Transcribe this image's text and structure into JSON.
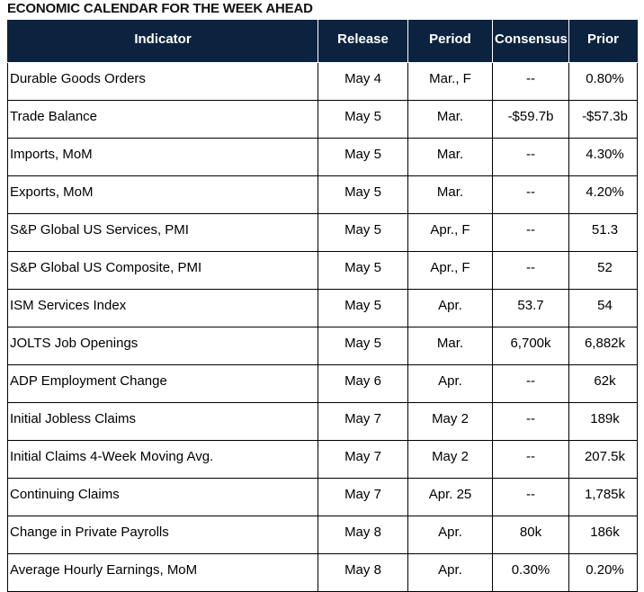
{
  "title": "ECONOMIC CALENDAR FOR THE WEEK AHEAD",
  "columns": {
    "indicator": "Indicator",
    "release": "Release",
    "period": "Period",
    "consensus": "Consensus",
    "prior": "Prior"
  },
  "colors": {
    "header_bg": "#0c2340",
    "header_text": "#ffffff",
    "grid": "#000000"
  },
  "rows": [
    {
      "indicator": "Durable Goods Orders",
      "release": "May 4",
      "period": "Mar., F",
      "consensus": "--",
      "prior": "0.80%"
    },
    {
      "indicator": "Trade Balance",
      "release": "May 5",
      "period": "Mar.",
      "consensus": "-$59.7b",
      "prior": "-$57.3b"
    },
    {
      "indicator": "Imports, MoM",
      "release": "May 5",
      "period": "Mar.",
      "consensus": "--",
      "prior": "4.30%"
    },
    {
      "indicator": "Exports, MoM",
      "release": "May 5",
      "period": "Mar.",
      "consensus": "--",
      "prior": "4.20%"
    },
    {
      "indicator": "S&P Global US Services, PMI",
      "release": "May 5",
      "period": "Apr., F",
      "consensus": "--",
      "prior": "51.3"
    },
    {
      "indicator": "S&P Global US Composite, PMI",
      "release": "May 5",
      "period": "Apr., F",
      "consensus": "--",
      "prior": "52"
    },
    {
      "indicator": "ISM Services Index",
      "release": "May 5",
      "period": "Apr.",
      "consensus": "53.7",
      "prior": "54"
    },
    {
      "indicator": "JOLTS Job Openings",
      "release": "May 5",
      "period": "Mar.",
      "consensus": "6,700k",
      "prior": "6,882k"
    },
    {
      "indicator": "ADP Employment Change",
      "release": "May 6",
      "period": "Apr.",
      "consensus": "--",
      "prior": "62k"
    },
    {
      "indicator": "Initial Jobless Claims",
      "release": "May 7",
      "period": "May 2",
      "consensus": "--",
      "prior": "189k"
    },
    {
      "indicator": "Initial Claims 4-Week Moving Avg.",
      "release": "May 7",
      "period": "May 2",
      "consensus": "--",
      "prior": "207.5k"
    },
    {
      "indicator": "Continuing Claims",
      "release": "May 7",
      "period": "Apr. 25",
      "consensus": "--",
      "prior": "1,785k"
    },
    {
      "indicator": "Change in Private Payrolls",
      "release": "May 8",
      "period": "Apr.",
      "consensus": "80k",
      "prior": "186k"
    },
    {
      "indicator": "Average Hourly Earnings, MoM",
      "release": "May 8",
      "period": "Apr.",
      "consensus": "0.30%",
      "prior": "0.20%"
    }
  ]
}
